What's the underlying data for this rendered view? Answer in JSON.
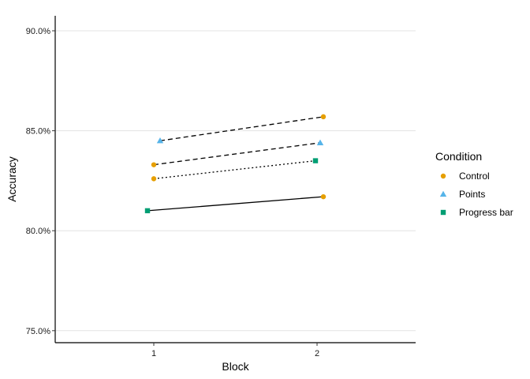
{
  "chart_data": {
    "type": "line",
    "title": "",
    "xlabel": "Block",
    "ylabel": "Accuracy",
    "x_categories": [
      "1",
      "2"
    ],
    "ylim": [
      0.744,
      0.9075
    ],
    "y_ticks": [
      0.75,
      0.8,
      0.85,
      0.9
    ],
    "y_tick_labels": [
      "75.0%",
      "80.0%",
      "85.0%",
      "90.0%"
    ],
    "grid": "horizontal major",
    "legend": {
      "title": "Condition",
      "position": "right",
      "entries": [
        {
          "label": "Control",
          "shape": "circle",
          "color": "#E69F00"
        },
        {
          "label": "Points",
          "shape": "triangle",
          "color": "#56B4E9"
        },
        {
          "label": "Progress bar",
          "shape": "square",
          "color": "#009E73"
        }
      ]
    },
    "series": [
      {
        "condition": "Control",
        "linetype": "dashed",
        "points": [
          {
            "block": 1,
            "y": 0.833
          },
          {
            "block": 2,
            "y": 0.857
          }
        ]
      },
      {
        "condition": "Points",
        "linetype": "dashed",
        "points": [
          {
            "block": 1,
            "y": 0.845
          },
          {
            "block": 2,
            "y": 0.844
          }
        ]
      },
      {
        "condition": "Control",
        "linetype": "dotted",
        "points": [
          {
            "block": 1,
            "y": 0.826
          },
          {
            "block": 2,
            "y": 0.835
          }
        ]
      },
      {
        "condition": "Progress bar",
        "linetype": "solid",
        "points": [
          {
            "block": 1,
            "y": 0.81
          },
          {
            "block": 2,
            "y": 0.817
          }
        ]
      }
    ],
    "line_pairs": [
      {
        "linetype": "dashed",
        "from": {
          "block": 1,
          "y": 0.845,
          "condition": "Points"
        },
        "to": {
          "block": 2,
          "y": 0.857,
          "condition": "Control"
        }
      },
      {
        "linetype": "dashed",
        "from": {
          "block": 1,
          "y": 0.833,
          "condition": "Control"
        },
        "to": {
          "block": 2,
          "y": 0.844,
          "condition": "Points"
        }
      },
      {
        "linetype": "dotted",
        "from": {
          "block": 1,
          "y": 0.826,
          "condition": "Control"
        },
        "to": {
          "block": 2,
          "y": 0.835,
          "condition": "Progress bar"
        }
      },
      {
        "linetype": "solid",
        "from": {
          "block": 1,
          "y": 0.81,
          "condition": "Progress bar"
        },
        "to": {
          "block": 2,
          "y": 0.817,
          "condition": "Control"
        }
      }
    ]
  }
}
